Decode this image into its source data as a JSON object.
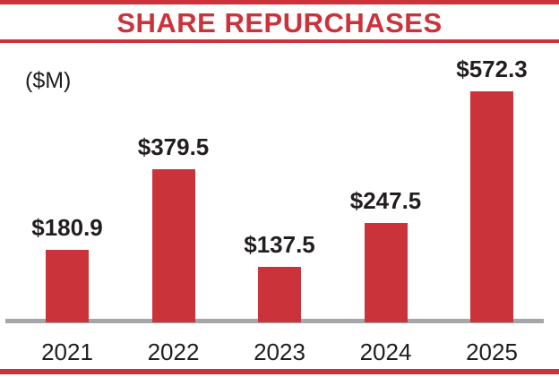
{
  "chart": {
    "title": "SHARE REPURCHASES",
    "units": "($M)",
    "colors": {
      "accent_red": "#CB333B",
      "axis_gray": "#A5A6A8",
      "text_dark": "#221E1F"
    }
  },
  "chart_data": {
    "type": "bar",
    "title": "SHARE REPURCHASES",
    "xlabel": "",
    "ylabel": "($M)",
    "categories": [
      "2021",
      "2022",
      "2023",
      "2024",
      "2025"
    ],
    "values": [
      180.9,
      379.5,
      137.5,
      247.5,
      572.3
    ],
    "value_labels": [
      "$180.9",
      "$379.5",
      "$137.5",
      "$247.5",
      "$572.3"
    ],
    "ylim": [
      0,
      600
    ],
    "grid": false,
    "legend": false,
    "bar_color": "#CB333B"
  }
}
